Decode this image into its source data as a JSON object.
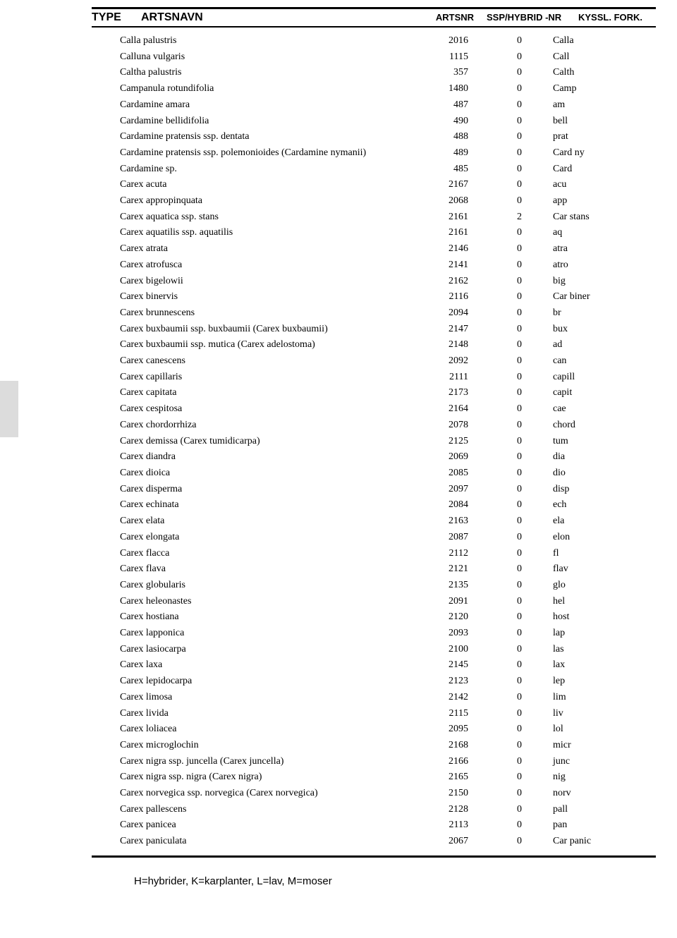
{
  "header": {
    "type": "TYPE",
    "artsnavn": "ARTSNAVN",
    "artsnr": "ARTSNR",
    "ssp": "SSP/HYBRID -NR",
    "kyssl": "KYSSL. FORK."
  },
  "footer": "H=hybrider, K=karplanter, L=lav, M=moser",
  "rows": [
    {
      "n": "Calla palustris",
      "a": "2016",
      "s": "0",
      "k": "Calla"
    },
    {
      "n": "Calluna vulgaris",
      "a": "1115",
      "s": "0",
      "k": "Call"
    },
    {
      "n": "Caltha palustris",
      "a": "357",
      "s": "0",
      "k": "Calth"
    },
    {
      "n": "Campanula rotundifolia",
      "a": "1480",
      "s": "0",
      "k": "Camp"
    },
    {
      "n": "Cardamine amara",
      "a": "487",
      "s": "0",
      "k": "am"
    },
    {
      "n": "Cardamine bellidifolia",
      "a": "490",
      "s": "0",
      "k": "bell"
    },
    {
      "n": "Cardamine pratensis ssp. dentata",
      "a": "488",
      "s": "0",
      "k": "prat"
    },
    {
      "n": "Cardamine pratensis ssp. polemonioides (Cardamine nymanii)",
      "a": "489",
      "s": "0",
      "k": "Card ny"
    },
    {
      "n": "Cardamine sp.",
      "a": "485",
      "s": "0",
      "k": "Card"
    },
    {
      "n": "Carex acuta",
      "a": "2167",
      "s": "0",
      "k": "acu"
    },
    {
      "n": "Carex appropinquata",
      "a": "2068",
      "s": "0",
      "k": "app"
    },
    {
      "n": "Carex aquatica ssp. stans",
      "a": "2161",
      "s": "2",
      "k": "Car stans"
    },
    {
      "n": "Carex aquatilis ssp. aquatilis",
      "a": "2161",
      "s": "0",
      "k": "aq"
    },
    {
      "n": "Carex atrata",
      "a": "2146",
      "s": "0",
      "k": "atra"
    },
    {
      "n": "Carex atrofusca",
      "a": "2141",
      "s": "0",
      "k": "atro"
    },
    {
      "n": "Carex bigelowii",
      "a": "2162",
      "s": "0",
      "k": "big"
    },
    {
      "n": "Carex binervis",
      "a": "2116",
      "s": "0",
      "k": "Car biner"
    },
    {
      "n": "Carex brunnescens",
      "a": "2094",
      "s": "0",
      "k": "br"
    },
    {
      "n": "Carex buxbaumii ssp. buxbaumii (Carex buxbaumii)",
      "a": "2147",
      "s": "0",
      "k": "bux"
    },
    {
      "n": "Carex buxbaumii ssp. mutica (Carex adelostoma)",
      "a": "2148",
      "s": "0",
      "k": "ad"
    },
    {
      "n": "Carex canescens",
      "a": "2092",
      "s": "0",
      "k": "can"
    },
    {
      "n": "Carex capillaris",
      "a": "2111",
      "s": "0",
      "k": "capill"
    },
    {
      "n": "Carex capitata",
      "a": "2173",
      "s": "0",
      "k": "capit"
    },
    {
      "n": "Carex cespitosa",
      "a": "2164",
      "s": "0",
      "k": "cae"
    },
    {
      "n": "Carex chordorrhiza",
      "a": "2078",
      "s": "0",
      "k": "chord"
    },
    {
      "n": "Carex demissa (Carex tumidicarpa)",
      "a": "2125",
      "s": "0",
      "k": "tum"
    },
    {
      "n": "Carex diandra",
      "a": "2069",
      "s": "0",
      "k": "dia"
    },
    {
      "n": "Carex dioica",
      "a": "2085",
      "s": "0",
      "k": "dio"
    },
    {
      "n": "Carex disperma",
      "a": "2097",
      "s": "0",
      "k": "disp"
    },
    {
      "n": "Carex echinata",
      "a": "2084",
      "s": "0",
      "k": "ech"
    },
    {
      "n": "Carex elata",
      "a": "2163",
      "s": "0",
      "k": "ela"
    },
    {
      "n": "Carex elongata",
      "a": "2087",
      "s": "0",
      "k": "elon"
    },
    {
      "n": "Carex flacca",
      "a": "2112",
      "s": "0",
      "k": "fl"
    },
    {
      "n": "Carex flava",
      "a": "2121",
      "s": "0",
      "k": "flav"
    },
    {
      "n": "Carex globularis",
      "a": "2135",
      "s": "0",
      "k": "glo"
    },
    {
      "n": "Carex heleonastes",
      "a": "2091",
      "s": "0",
      "k": "hel"
    },
    {
      "n": "Carex hostiana",
      "a": "2120",
      "s": "0",
      "k": "host"
    },
    {
      "n": "Carex lapponica",
      "a": "2093",
      "s": "0",
      "k": "lap"
    },
    {
      "n": "Carex lasiocarpa",
      "a": "2100",
      "s": "0",
      "k": "las"
    },
    {
      "n": "Carex laxa",
      "a": "2145",
      "s": "0",
      "k": "lax"
    },
    {
      "n": "Carex lepidocarpa",
      "a": "2123",
      "s": "0",
      "k": "lep"
    },
    {
      "n": "Carex limosa",
      "a": "2142",
      "s": "0",
      "k": "lim"
    },
    {
      "n": "Carex livida",
      "a": "2115",
      "s": "0",
      "k": "liv"
    },
    {
      "n": "Carex loliacea",
      "a": "2095",
      "s": "0",
      "k": "lol"
    },
    {
      "n": "Carex microglochin",
      "a": "2168",
      "s": "0",
      "k": "micr"
    },
    {
      "n": "Carex nigra ssp. juncella (Carex juncella)",
      "a": "2166",
      "s": "0",
      "k": "junc"
    },
    {
      "n": "Carex nigra ssp. nigra (Carex nigra)",
      "a": "2165",
      "s": "0",
      "k": "nig"
    },
    {
      "n": "Carex norvegica ssp. norvegica (Carex norvegica)",
      "a": "2150",
      "s": "0",
      "k": "norv"
    },
    {
      "n": "Carex pallescens",
      "a": "2128",
      "s": "0",
      "k": "pall"
    },
    {
      "n": "Carex panicea",
      "a": "2113",
      "s": "0",
      "k": "pan"
    },
    {
      "n": "Carex paniculata",
      "a": "2067",
      "s": "0",
      "k": "Car panic"
    }
  ]
}
